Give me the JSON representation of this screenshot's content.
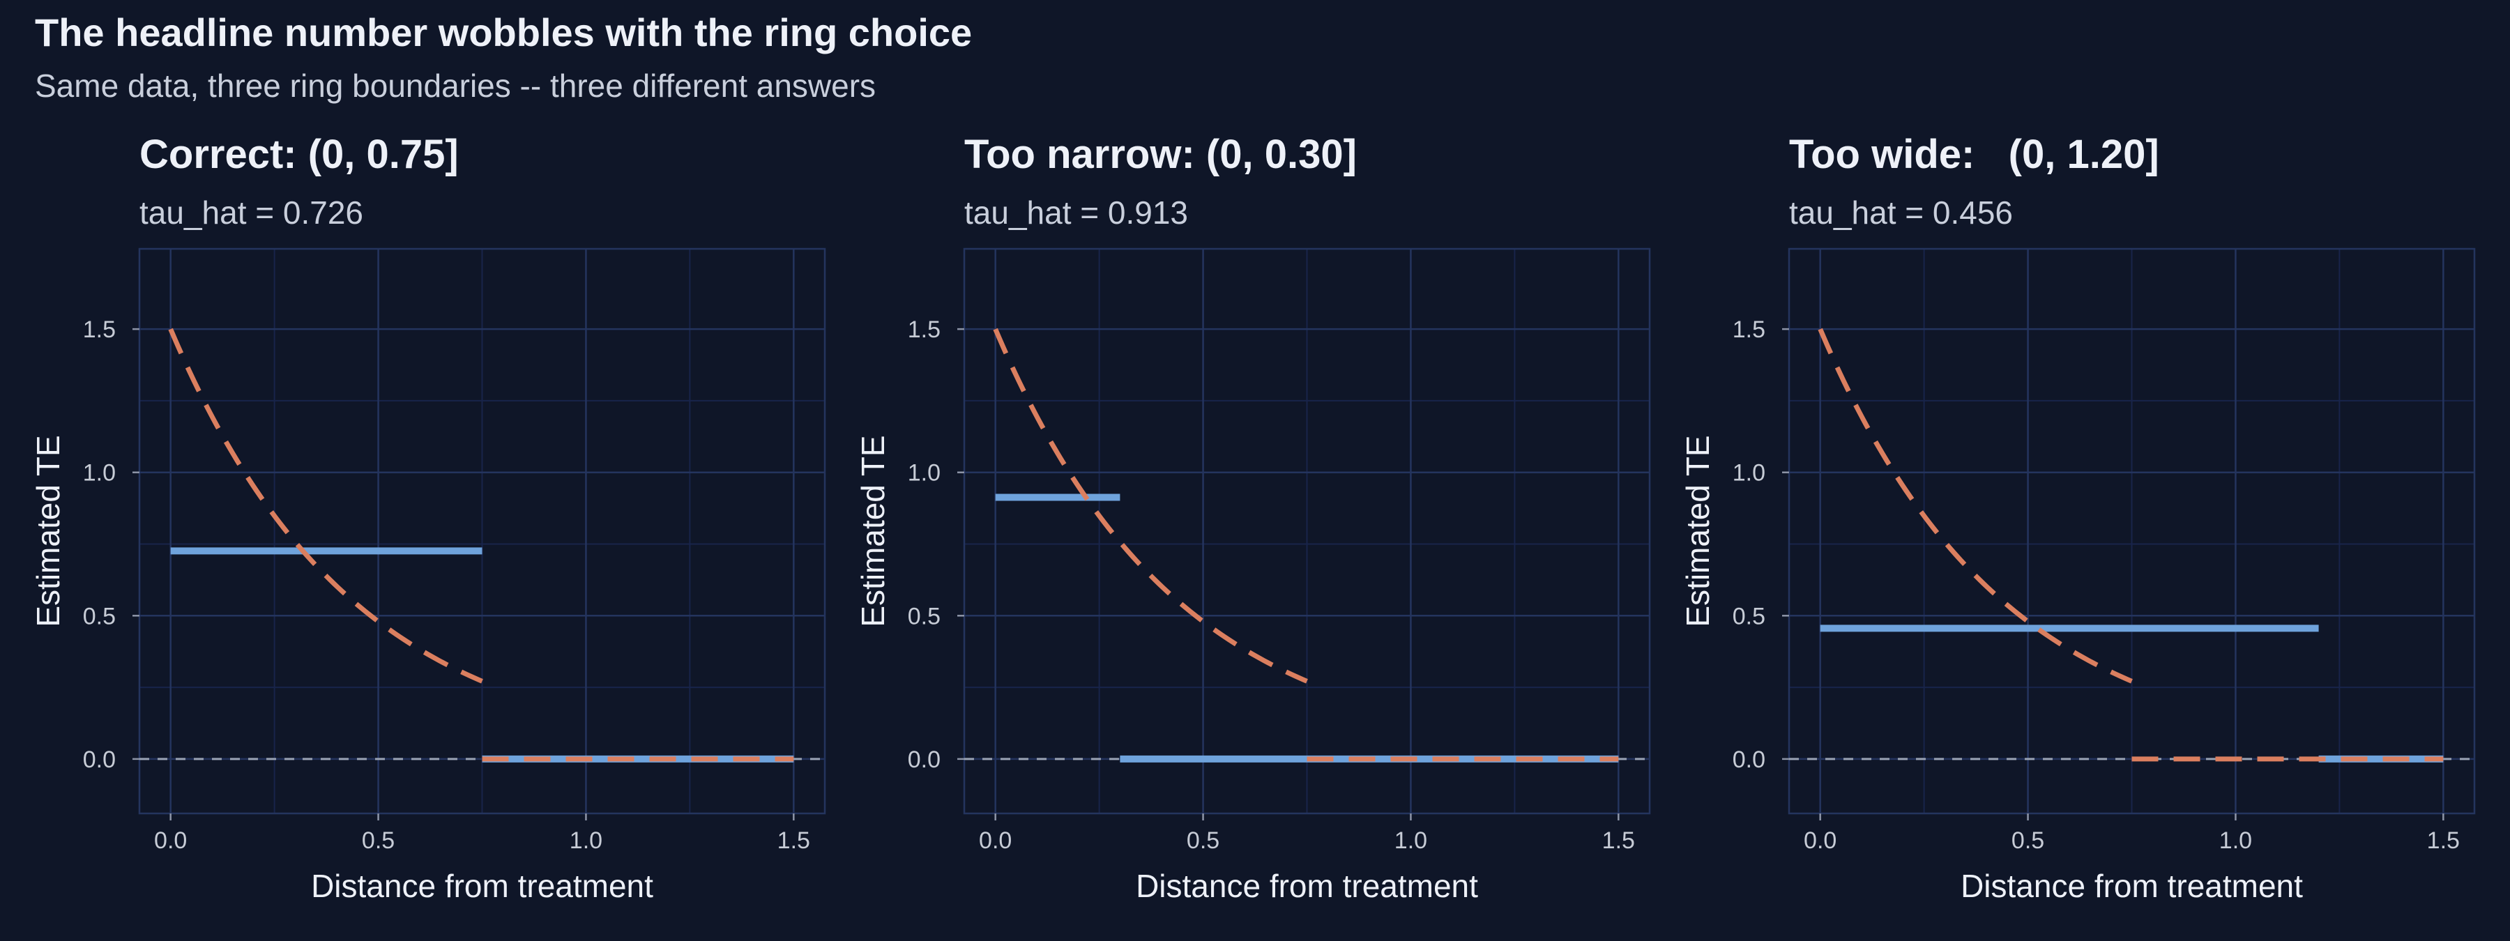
{
  "title": "The headline number wobbles with the ring choice",
  "subtitle": "Same data, three ring boundaries -- three different answers",
  "colors": {
    "background": "#0f1628",
    "panel_border": "#24345e",
    "grid_major": "#24345e",
    "grid_minor": "#18244a",
    "estimate": "#6fa3dc",
    "true_effect": "#db7f5f",
    "zero_line": "#9aa3b5"
  },
  "chart_data": [
    {
      "type": "line",
      "title": "Correct: (0, 0.75]",
      "subtitle": "tau_hat = 0.726",
      "xlabel": "Distance from treatment",
      "ylabel": "Estimated TE",
      "xlim": [
        -0.075,
        1.575
      ],
      "ylim": [
        -0.19,
        1.78
      ],
      "x_ticks": [
        0.0,
        0.5,
        1.0,
        1.5
      ],
      "x_tick_labels": [
        "0.0",
        "0.5",
        "1.0",
        "1.5"
      ],
      "y_ticks": [
        0.0,
        0.5,
        1.0,
        1.5
      ],
      "y_tick_labels": [
        "0.0",
        "0.5",
        "1.0",
        "1.5"
      ],
      "grid": true,
      "series": [
        {
          "style": "solid",
          "color": "#6fa3dc",
          "segments": [
            [
              [
                0.0,
                0.726
              ],
              [
                0.75,
                0.726
              ]
            ],
            [
              [
                0.75,
                0.0
              ],
              [
                1.5,
                0.0
              ]
            ]
          ]
        },
        {
          "style": "dashed",
          "color": "#db7f5f",
          "decay": {
            "amplitude": 1.5,
            "rate": 2.28,
            "x_end": 0.75
          },
          "tail": [
            [
              0.75,
              0.0
            ],
            [
              1.5,
              0.0
            ]
          ]
        }
      ]
    },
    {
      "type": "line",
      "title": "Too narrow: (0, 0.30]",
      "subtitle": "tau_hat = 0.913",
      "xlabel": "Distance from treatment",
      "ylabel": "Estimated TE",
      "xlim": [
        -0.075,
        1.575
      ],
      "ylim": [
        -0.19,
        1.78
      ],
      "x_ticks": [
        0.0,
        0.5,
        1.0,
        1.5
      ],
      "x_tick_labels": [
        "0.0",
        "0.5",
        "1.0",
        "1.5"
      ],
      "y_ticks": [
        0.0,
        0.5,
        1.0,
        1.5
      ],
      "y_tick_labels": [
        "0.0",
        "0.5",
        "1.0",
        "1.5"
      ],
      "grid": true,
      "series": [
        {
          "style": "solid",
          "color": "#6fa3dc",
          "segments": [
            [
              [
                0.0,
                0.913
              ],
              [
                0.3,
                0.913
              ]
            ],
            [
              [
                0.3,
                0.0
              ],
              [
                1.5,
                0.0
              ]
            ]
          ]
        },
        {
          "style": "dashed",
          "color": "#db7f5f",
          "decay": {
            "amplitude": 1.5,
            "rate": 2.28,
            "x_end": 0.75
          },
          "tail": [
            [
              0.75,
              0.0
            ],
            [
              1.5,
              0.0
            ]
          ]
        }
      ]
    },
    {
      "type": "line",
      "title": "Too wide:   (0, 1.20]",
      "subtitle": "tau_hat = 0.456",
      "xlabel": "Distance from treatment",
      "ylabel": "Estimated TE",
      "xlim": [
        -0.075,
        1.575
      ],
      "ylim": [
        -0.19,
        1.78
      ],
      "x_ticks": [
        0.0,
        0.5,
        1.0,
        1.5
      ],
      "x_tick_labels": [
        "0.0",
        "0.5",
        "1.0",
        "1.5"
      ],
      "y_ticks": [
        0.0,
        0.5,
        1.0,
        1.5
      ],
      "y_tick_labels": [
        "0.0",
        "0.5",
        "1.0",
        "1.5"
      ],
      "grid": true,
      "series": [
        {
          "style": "solid",
          "color": "#6fa3dc",
          "segments": [
            [
              [
                0.0,
                0.456
              ],
              [
                1.2,
                0.456
              ]
            ],
            [
              [
                1.2,
                0.0
              ],
              [
                1.5,
                0.0
              ]
            ]
          ]
        },
        {
          "style": "dashed",
          "color": "#db7f5f",
          "decay": {
            "amplitude": 1.5,
            "rate": 2.28,
            "x_end": 0.75
          },
          "tail": [
            [
              0.75,
              0.0
            ],
            [
              1.5,
              0.0
            ]
          ]
        }
      ]
    }
  ]
}
